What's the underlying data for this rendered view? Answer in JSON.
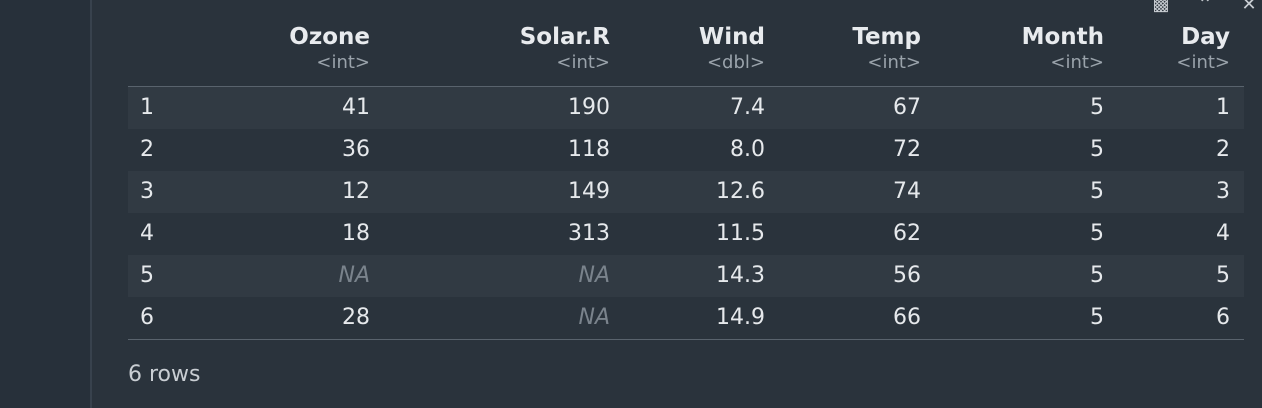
{
  "toolbar": {
    "icons": [
      "pop-out-icon",
      "collapse-icon",
      "close-icon"
    ]
  },
  "table": {
    "columns": [
      {
        "name": "Ozone",
        "type": "<int>"
      },
      {
        "name": "Solar.R",
        "type": "<int>"
      },
      {
        "name": "Wind",
        "type": "<dbl>"
      },
      {
        "name": "Temp",
        "type": "<int>"
      },
      {
        "name": "Month",
        "type": "<int>"
      },
      {
        "name": "Day",
        "type": "<int>"
      }
    ],
    "rows": [
      {
        "rowname": "1",
        "cells": [
          "41",
          "190",
          "7.4",
          "67",
          "5",
          "1"
        ]
      },
      {
        "rowname": "2",
        "cells": [
          "36",
          "118",
          "8.0",
          "72",
          "5",
          "2"
        ]
      },
      {
        "rowname": "3",
        "cells": [
          "12",
          "149",
          "12.6",
          "74",
          "5",
          "3"
        ]
      },
      {
        "rowname": "4",
        "cells": [
          "18",
          "313",
          "11.5",
          "62",
          "5",
          "4"
        ]
      },
      {
        "rowname": "5",
        "cells": [
          "NA",
          "NA",
          "14.3",
          "56",
          "5",
          "5"
        ]
      },
      {
        "rowname": "6",
        "cells": [
          "28",
          "NA",
          "14.9",
          "66",
          "5",
          "6"
        ]
      }
    ]
  },
  "footer": {
    "row_count": "6 rows"
  }
}
